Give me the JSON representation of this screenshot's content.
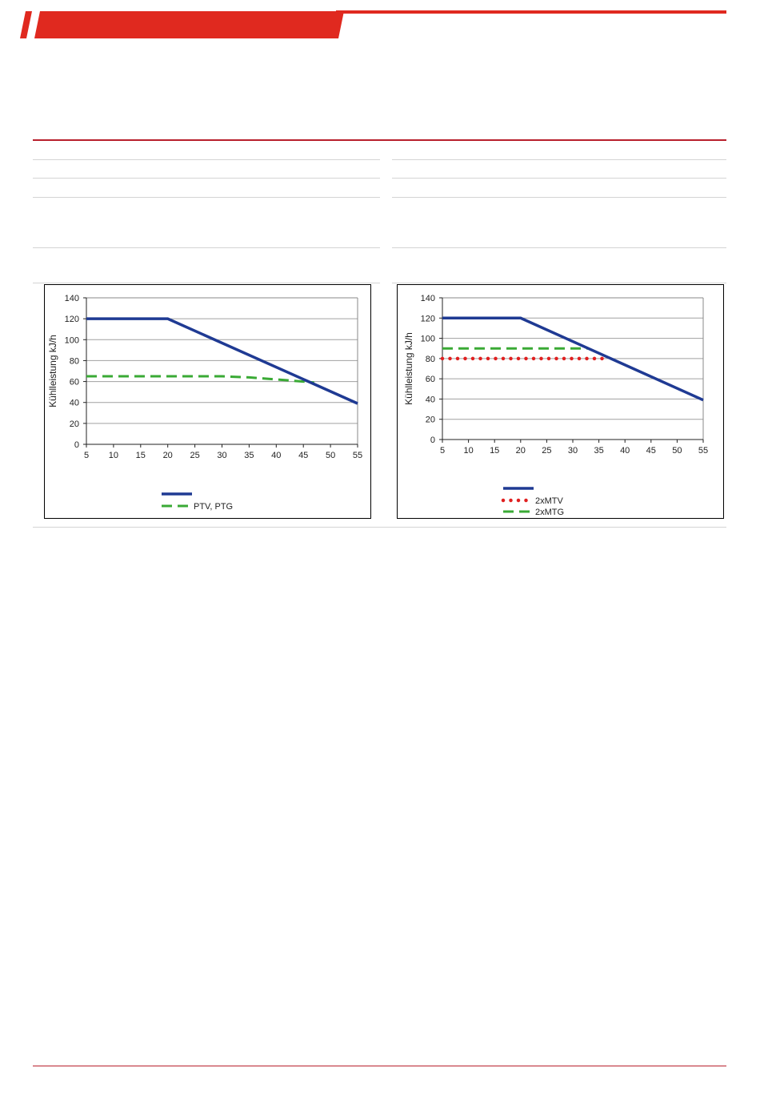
{
  "colors": {
    "brand_red": "#e0291f",
    "rule_red": "#b8202c",
    "rule_grey": "#d4d4d4"
  },
  "chart_data": [
    {
      "type": "line",
      "ylabel": "Kühlleistung kJ/h",
      "xlabel": "",
      "xlim": [
        5,
        55
      ],
      "ylim": [
        0,
        140
      ],
      "x_ticks": [
        5,
        10,
        15,
        20,
        25,
        30,
        35,
        40,
        45,
        50,
        55
      ],
      "y_ticks": [
        0,
        20,
        40,
        60,
        80,
        100,
        120,
        140
      ],
      "grid": "horizontal",
      "legend": "bottom",
      "series": [
        {
          "name": "",
          "color": "#1f3a93",
          "style": "solid",
          "points": [
            [
              5,
              120
            ],
            [
              20,
              120
            ],
            [
              55,
              39
            ]
          ]
        },
        {
          "name": "PTV, PTG",
          "color": "#3aaa35",
          "style": "dashed",
          "points": [
            [
              5,
              65
            ],
            [
              30,
              65
            ],
            [
              35,
              64
            ],
            [
              40,
              62
            ],
            [
              45,
              60
            ],
            [
              47,
              59
            ]
          ]
        }
      ]
    },
    {
      "type": "line",
      "ylabel": "Kühlleistung kJ/h",
      "xlabel": "",
      "xlim": [
        5,
        55
      ],
      "ylim": [
        0,
        140
      ],
      "x_ticks": [
        5,
        10,
        15,
        20,
        25,
        30,
        35,
        40,
        45,
        50,
        55
      ],
      "y_ticks": [
        0,
        20,
        40,
        60,
        80,
        100,
        120,
        140
      ],
      "grid": "horizontal",
      "legend": "bottom",
      "series": [
        {
          "name": "",
          "color": "#1f3a93",
          "style": "solid",
          "points": [
            [
              5,
              120
            ],
            [
              20,
              120
            ],
            [
              55,
              39
            ]
          ]
        },
        {
          "name": "2xMTV",
          "color": "#e02020",
          "style": "dotted",
          "points": [
            [
              5,
              80
            ],
            [
              37,
              80
            ]
          ]
        },
        {
          "name": "2xMTG",
          "color": "#3aaa35",
          "style": "dashed",
          "points": [
            [
              5,
              90
            ],
            [
              33,
              90
            ]
          ]
        }
      ]
    }
  ]
}
